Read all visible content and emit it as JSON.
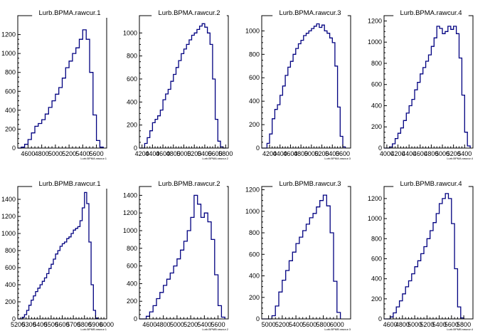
{
  "chart_data": [
    {
      "type": "bar",
      "title": "Lurb.BPMA.rawcur.1",
      "xlabel": "Lurb.BPMA.rawcur.1",
      "xlim": [
        4450,
        5750
      ],
      "ylim": [
        0,
        1400
      ],
      "xticks": [
        4600,
        4800,
        5000,
        5200,
        5400,
        5600
      ],
      "yticks": [
        0,
        200,
        400,
        600,
        800,
        1000,
        1200
      ],
      "bin_edges": [
        4450,
        4500,
        4550,
        4600,
        4650,
        4700,
        4750,
        4800,
        4850,
        4900,
        4950,
        5000,
        5050,
        5100,
        5150,
        5200,
        5250,
        5300,
        5350,
        5400,
        5450,
        5500,
        5550,
        5600,
        5650,
        5700
      ],
      "values": [
        0,
        10,
        40,
        90,
        160,
        230,
        260,
        300,
        360,
        430,
        500,
        570,
        640,
        740,
        850,
        920,
        1000,
        1060,
        1150,
        1250,
        1150,
        800,
        350,
        80,
        10
      ]
    },
    {
      "type": "bar",
      "title": "Lurb.BPMA.rawcur.2",
      "xlabel": "Lurb.BPMA.rawcur.2",
      "xlim": [
        4150,
        5850
      ],
      "ylim": [
        0,
        1150
      ],
      "xticks": [
        4200,
        4400,
        4600,
        4800,
        5000,
        5200,
        5400,
        5600,
        5800
      ],
      "yticks": [
        0,
        200,
        400,
        600,
        800,
        1000
      ],
      "bin_edges": [
        4150,
        4250,
        4300,
        4350,
        4400,
        4450,
        4500,
        4550,
        4600,
        4650,
        4700,
        4750,
        4800,
        4850,
        4900,
        4950,
        5000,
        5050,
        5100,
        5150,
        5200,
        5250,
        5300,
        5350,
        5400,
        5450,
        5500,
        5550,
        5600,
        5650,
        5700,
        5750,
        5800
      ],
      "values": [
        0,
        40,
        90,
        150,
        220,
        250,
        280,
        330,
        420,
        470,
        510,
        580,
        640,
        700,
        760,
        820,
        860,
        900,
        940,
        980,
        1000,
        1030,
        1060,
        1080,
        1050,
        1000,
        900,
        600,
        250,
        60,
        10,
        0
      ]
    },
    {
      "type": "bar",
      "title": "Lurb.BPMA.rawcur.3",
      "xlabel": "Lurb.BPMA.rawcur.3",
      "xlim": [
        4050,
        5750
      ],
      "ylim": [
        0,
        1130
      ],
      "xticks": [
        4200,
        4400,
        4600,
        4800,
        5000,
        5200,
        5400,
        5600
      ],
      "yticks": [
        0,
        200,
        400,
        600,
        800,
        1000
      ],
      "bin_edges": [
        4050,
        4150,
        4200,
        4250,
        4300,
        4350,
        4400,
        4450,
        4500,
        4550,
        4600,
        4650,
        4700,
        4750,
        4800,
        4850,
        4900,
        4950,
        5000,
        5050,
        5100,
        5150,
        5200,
        5250,
        5300,
        5350,
        5400,
        5450,
        5500,
        5550,
        5600,
        5650
      ],
      "values": [
        0,
        40,
        120,
        250,
        330,
        370,
        450,
        530,
        620,
        690,
        740,
        800,
        850,
        890,
        920,
        960,
        980,
        1000,
        1020,
        1040,
        1060,
        1030,
        1050,
        1000,
        980,
        940,
        900,
        700,
        350,
        100,
        10
      ]
    },
    {
      "type": "bar",
      "title": "Lurb.BPMA.rawcur.4",
      "xlabel": "Lurb.BPMA.rawcur.4",
      "xlim": [
        3950,
        5550
      ],
      "ylim": [
        0,
        1250
      ],
      "xticks": [
        4000,
        4200,
        4400,
        4600,
        4800,
        5000,
        5200,
        5400
      ],
      "yticks": [
        0,
        200,
        400,
        600,
        800,
        1000,
        1200
      ],
      "bin_edges": [
        3950,
        4050,
        4100,
        4150,
        4200,
        4250,
        4300,
        4350,
        4400,
        4450,
        4500,
        4550,
        4600,
        4650,
        4700,
        4750,
        4800,
        4850,
        4900,
        4950,
        5000,
        5050,
        5100,
        5150,
        5200,
        5250,
        5300,
        5350,
        5400,
        5450,
        5500
      ],
      "values": [
        0,
        10,
        40,
        90,
        140,
        190,
        260,
        330,
        400,
        460,
        550,
        620,
        700,
        760,
        820,
        880,
        960,
        1040,
        1150,
        1130,
        1080,
        1100,
        1150,
        1120,
        1150,
        1080,
        850,
        500,
        150,
        20
      ]
    },
    {
      "type": "bar",
      "title": "Lurb.BPMB.rawcur.1",
      "xlabel": "Lurb.BPMB.rawcur.1",
      "xlim": [
        5200,
        6000
      ],
      "ylim": [
        0,
        1550
      ],
      "xticks": [
        5200,
        5300,
        5400,
        5500,
        5600,
        5700,
        5800,
        5900,
        6000
      ],
      "yticks": [
        0,
        200,
        400,
        600,
        800,
        1000,
        1200,
        1400
      ],
      "bin_edges": [
        5200,
        5240,
        5260,
        5280,
        5300,
        5320,
        5340,
        5360,
        5380,
        5400,
        5420,
        5440,
        5460,
        5480,
        5500,
        5520,
        5540,
        5560,
        5580,
        5600,
        5620,
        5640,
        5660,
        5680,
        5700,
        5720,
        5740,
        5760,
        5780,
        5800,
        5820,
        5840,
        5860,
        5880,
        5900,
        5920
      ],
      "values": [
        0,
        20,
        50,
        100,
        160,
        220,
        270,
        320,
        360,
        400,
        440,
        480,
        530,
        590,
        640,
        700,
        760,
        800,
        850,
        880,
        900,
        940,
        960,
        1000,
        1040,
        1060,
        1080,
        1150,
        1300,
        1480,
        1350,
        900,
        400,
        100,
        10
      ]
    },
    {
      "type": "bar",
      "title": "Lurb.BPMB.rawcur.2",
      "xlabel": "Lurb.BPMB.rawcur.2",
      "xlim": [
        4450,
        5750
      ],
      "ylim": [
        0,
        1500
      ],
      "xticks": [
        4600,
        4800,
        5000,
        5200,
        5400,
        5600
      ],
      "yticks": [
        0,
        200,
        400,
        600,
        800,
        1000,
        1200,
        1400
      ],
      "bin_edges": [
        4450,
        4550,
        4600,
        4650,
        4700,
        4750,
        4800,
        4850,
        4900,
        4950,
        5000,
        5050,
        5100,
        5150,
        5200,
        5250,
        5300,
        5350,
        5400,
        5450,
        5500,
        5550,
        5600,
        5650,
        5700
      ],
      "values": [
        0,
        30,
        80,
        150,
        230,
        300,
        380,
        450,
        520,
        600,
        680,
        780,
        880,
        1000,
        1150,
        1400,
        1300,
        1150,
        1200,
        1100,
        900,
        500,
        150,
        20
      ]
    },
    {
      "type": "bar",
      "title": "Lurb.BPMB.rawcur.3",
      "xlabel": "Lurb.BPMB.rawcur.3",
      "xlim": [
        4900,
        6200
      ],
      "ylim": [
        0,
        1230
      ],
      "xticks": [
        5000,
        5200,
        5400,
        5600,
        5800,
        6000
      ],
      "yticks": [
        0,
        200,
        400,
        600,
        800,
        1000,
        1200
      ],
      "bin_edges": [
        4900,
        5050,
        5100,
        5150,
        5200,
        5250,
        5300,
        5350,
        5400,
        5450,
        5500,
        5550,
        5600,
        5650,
        5700,
        5750,
        5800,
        5850,
        5900,
        5950,
        6000,
        6050
      ],
      "values": [
        0,
        30,
        120,
        250,
        360,
        450,
        540,
        620,
        700,
        760,
        820,
        880,
        940,
        980,
        1040,
        1100,
        1150,
        1050,
        800,
        350,
        60
      ]
    },
    {
      "type": "bar",
      "title": "Lurb.BPMB.rawcur.4",
      "xlabel": "Lurb.BPMB.rawcur.4",
      "xlim": [
        4500,
        5950
      ],
      "ylim": [
        0,
        1320
      ],
      "xticks": [
        4600,
        4800,
        5000,
        5200,
        5400,
        5600,
        5800
      ],
      "yticks": [
        0,
        200,
        400,
        600,
        800,
        1000,
        1200
      ],
      "bin_edges": [
        4500,
        4600,
        4650,
        4700,
        4750,
        4800,
        4850,
        4900,
        4950,
        5000,
        5050,
        5100,
        5150,
        5200,
        5250,
        5300,
        5350,
        5400,
        5450,
        5500,
        5550,
        5600,
        5650,
        5700,
        5750,
        5800
      ],
      "values": [
        0,
        20,
        60,
        120,
        180,
        250,
        320,
        380,
        450,
        520,
        580,
        650,
        720,
        800,
        880,
        960,
        1050,
        1150,
        1200,
        1250,
        1200,
        950,
        500,
        120,
        10
      ]
    }
  ]
}
